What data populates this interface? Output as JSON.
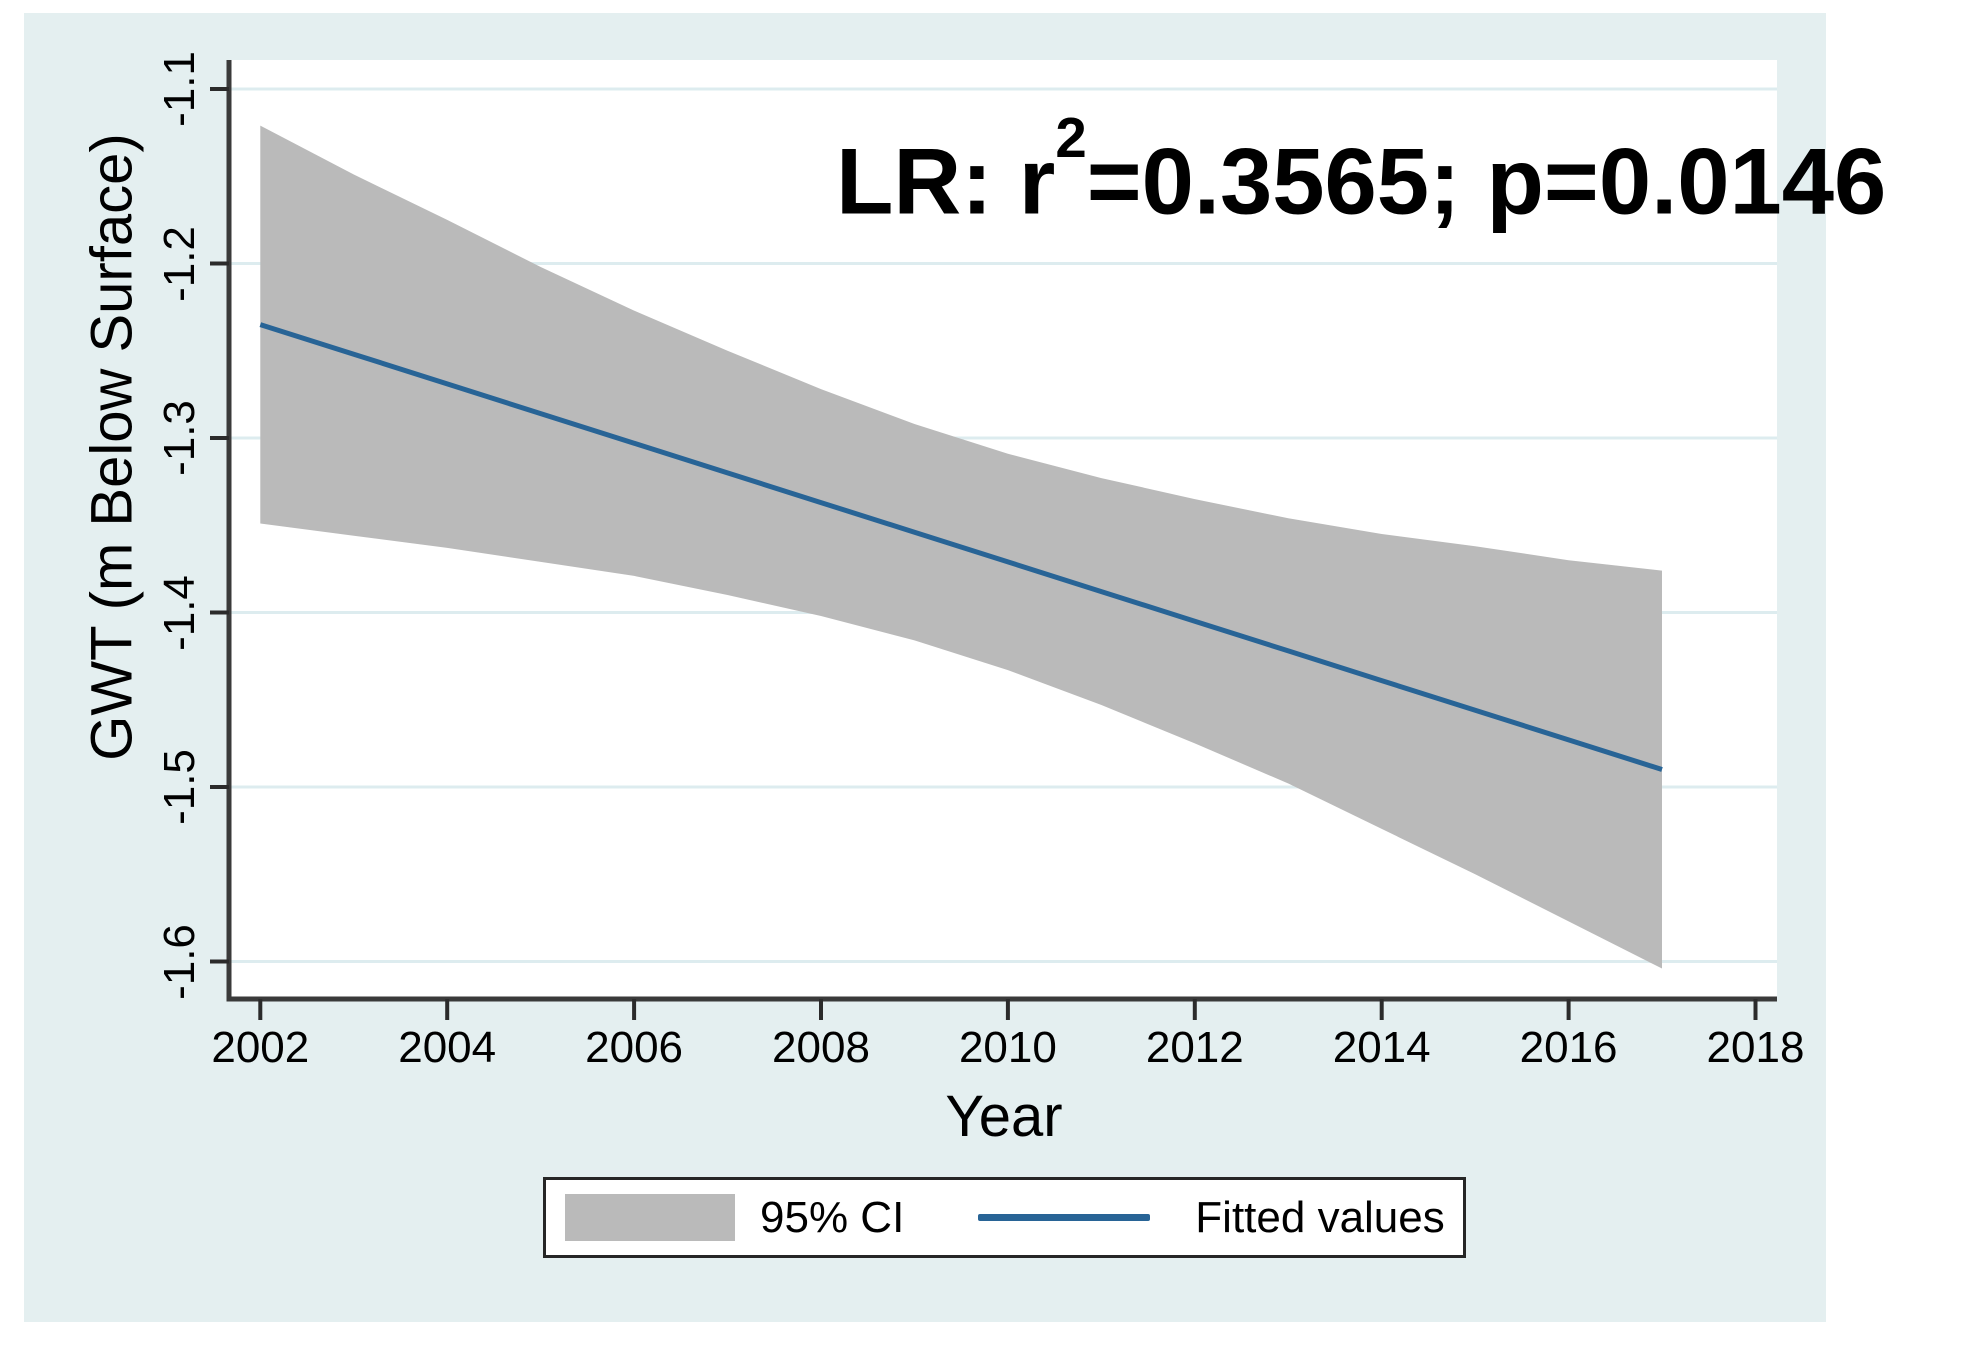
{
  "figure": {
    "page_bg": "#ffffff",
    "panel_bg": "#e4eff0",
    "plot_bg": "#ffffff",
    "grid_color": "#ddecef",
    "axis_color": "#3a3a3a",
    "tick_color": "#2b2b2b",
    "band_color": "#bababa",
    "line_color": "#286496",
    "text_color": "#000000",
    "legend_border_color": "#262626"
  },
  "annotation": {
    "prefix": "LR: r",
    "sup": "2",
    "suffix": "=0.3565; p=0.0146",
    "full_text": "LR: r²=0.3565; p=0.0146"
  },
  "axes": {
    "x_title": "Year",
    "y_title": "GWT (m Below Surface)",
    "x_ticks": [
      2002,
      2004,
      2006,
      2008,
      2010,
      2012,
      2014,
      2016,
      2018
    ],
    "y_ticks": [
      -1.1,
      -1.2,
      -1.3,
      -1.4,
      -1.5,
      -1.6
    ]
  },
  "legend": {
    "ci_label": "95% CI",
    "fit_label": "Fitted values"
  },
  "chart_data": {
    "type": "line",
    "title": "",
    "xlabel": "Year",
    "ylabel": "GWT (m Below Surface)",
    "xlim": [
      2001.7,
      2018.2
    ],
    "ylim": [
      -1.624,
      -1.083
    ],
    "x_ticks": [
      2002,
      2004,
      2006,
      2008,
      2010,
      2012,
      2014,
      2016,
      2018
    ],
    "y_ticks": [
      -1.1,
      -1.2,
      -1.3,
      -1.4,
      -1.5,
      -1.6
    ],
    "grid": "horizontal-only",
    "legend_position": "bottom-center",
    "annotation": "LR: r²=0.3565; p=0.0146",
    "stats": {
      "r_squared": 0.3565,
      "p_value": 0.0146
    },
    "x": [
      2002,
      2003,
      2004,
      2005,
      2006,
      2007,
      2008,
      2009,
      2010,
      2011,
      2012,
      2013,
      2014,
      2015,
      2016,
      2017
    ],
    "series": [
      {
        "name": "Fitted values",
        "type": "line",
        "values": [
          -1.235,
          -1.252,
          -1.269,
          -1.286,
          -1.303,
          -1.32,
          -1.337,
          -1.354,
          -1.371,
          -1.388,
          -1.405,
          -1.422,
          -1.439,
          -1.456,
          -1.473,
          -1.49
        ]
      },
      {
        "name": "95% CI",
        "type": "band",
        "upper": [
          -1.121,
          -1.149,
          -1.175,
          -1.202,
          -1.227,
          -1.25,
          -1.272,
          -1.292,
          -1.309,
          -1.323,
          -1.335,
          -1.346,
          -1.355,
          -1.362,
          -1.37,
          -1.376
        ],
        "lower": [
          -1.349,
          -1.356,
          -1.363,
          -1.371,
          -1.379,
          -1.39,
          -1.402,
          -1.416,
          -1.433,
          -1.453,
          -1.475,
          -1.498,
          -1.524,
          -1.55,
          -1.577,
          -1.604
        ]
      }
    ]
  }
}
